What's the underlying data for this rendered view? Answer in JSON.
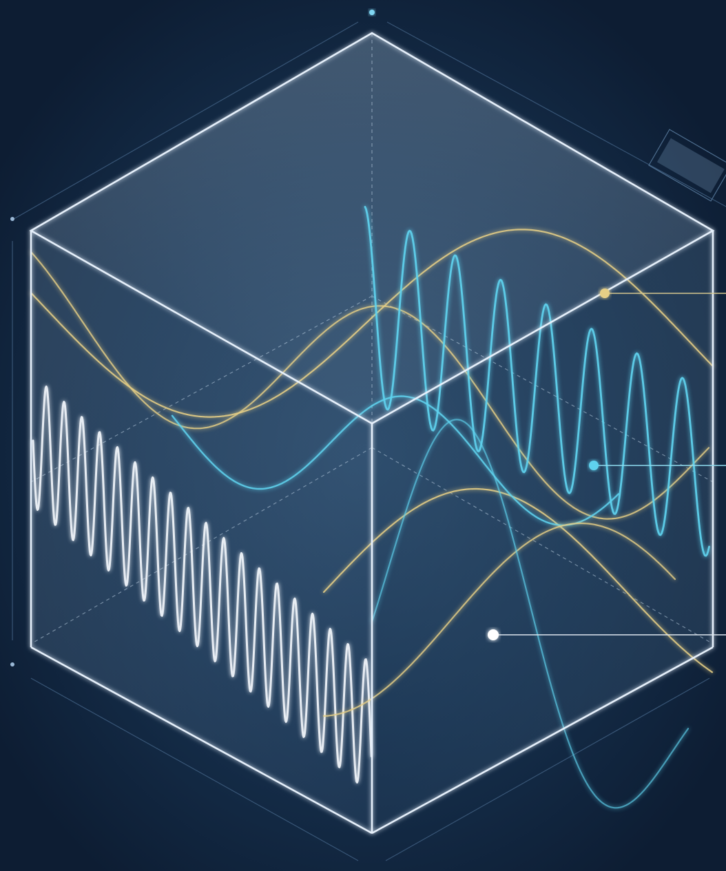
{
  "scene": {
    "subject": "wave-cube",
    "colors": {
      "background": "#0d1d33",
      "cube_edge": "#e6f0fb",
      "cube_face": "#8fb2cf",
      "cyan_wave": "#5fd2ee",
      "gold_wave": "#e6cf86",
      "white_wave": "#f2f6fb",
      "frame": "#3d5b7c"
    },
    "icons": [
      "label-plate-icon",
      "callout-marker-gold",
      "callout-marker-cyan",
      "callout-marker-white"
    ]
  }
}
